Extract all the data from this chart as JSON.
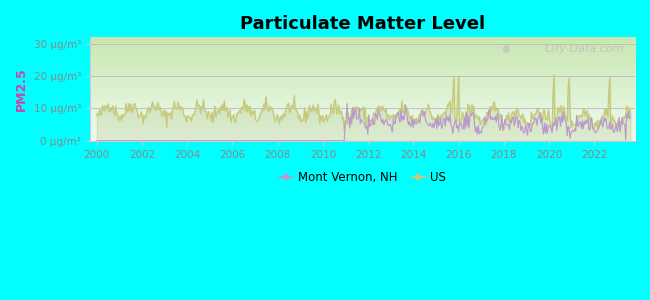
{
  "title": "Particulate Matter Level",
  "ylabel": "PM2.5",
  "ylim": [
    0,
    32
  ],
  "yticks": [
    0,
    10,
    20,
    30
  ],
  "ytick_labels": [
    "0 μg/m³",
    "10 μg/m³",
    "20 μg/m³",
    "30 μg/m³"
  ],
  "xlim": [
    1999.7,
    2023.8
  ],
  "xticks": [
    2000,
    2002,
    2004,
    2006,
    2008,
    2010,
    2012,
    2014,
    2016,
    2018,
    2020,
    2022
  ],
  "background_outer": "#00FFFF",
  "bg_top": "#f0faf0",
  "bg_bottom": "#c8e8b0",
  "color_mv": "#bb99cc",
  "color_us": "#c8c878",
  "legend_label_mv": "Mont Vernon, NH",
  "legend_label_us": "US",
  "watermark": "City-Data.com",
  "ylabel_color": "#cc44aa",
  "tick_color": "#888888",
  "grid_color": "#bbbbbb",
  "spine_color": "#cccccc"
}
